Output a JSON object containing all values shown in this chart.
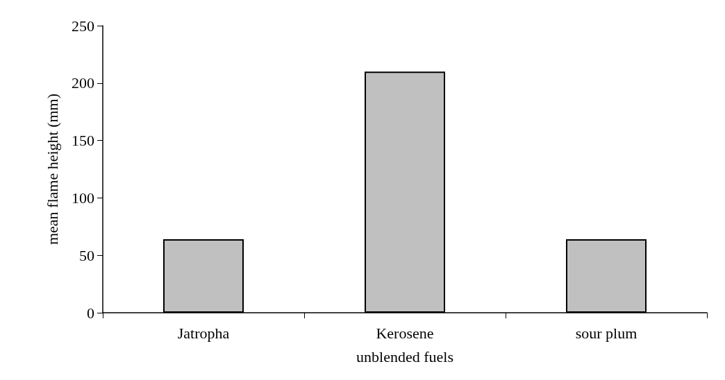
{
  "chart_data": {
    "type": "bar",
    "xlabel": "unblended fuels",
    "ylabel": "mean flame height (mm)",
    "categories": [
      "Jatropha",
      "Kerosene",
      "sour plum"
    ],
    "values": [
      64,
      210,
      64
    ],
    "color": "#c0c0c0",
    "ylim": [
      0,
      250
    ],
    "yticks": [
      0,
      50,
      100,
      150,
      200,
      250
    ],
    "grid": false,
    "legend": false
  }
}
